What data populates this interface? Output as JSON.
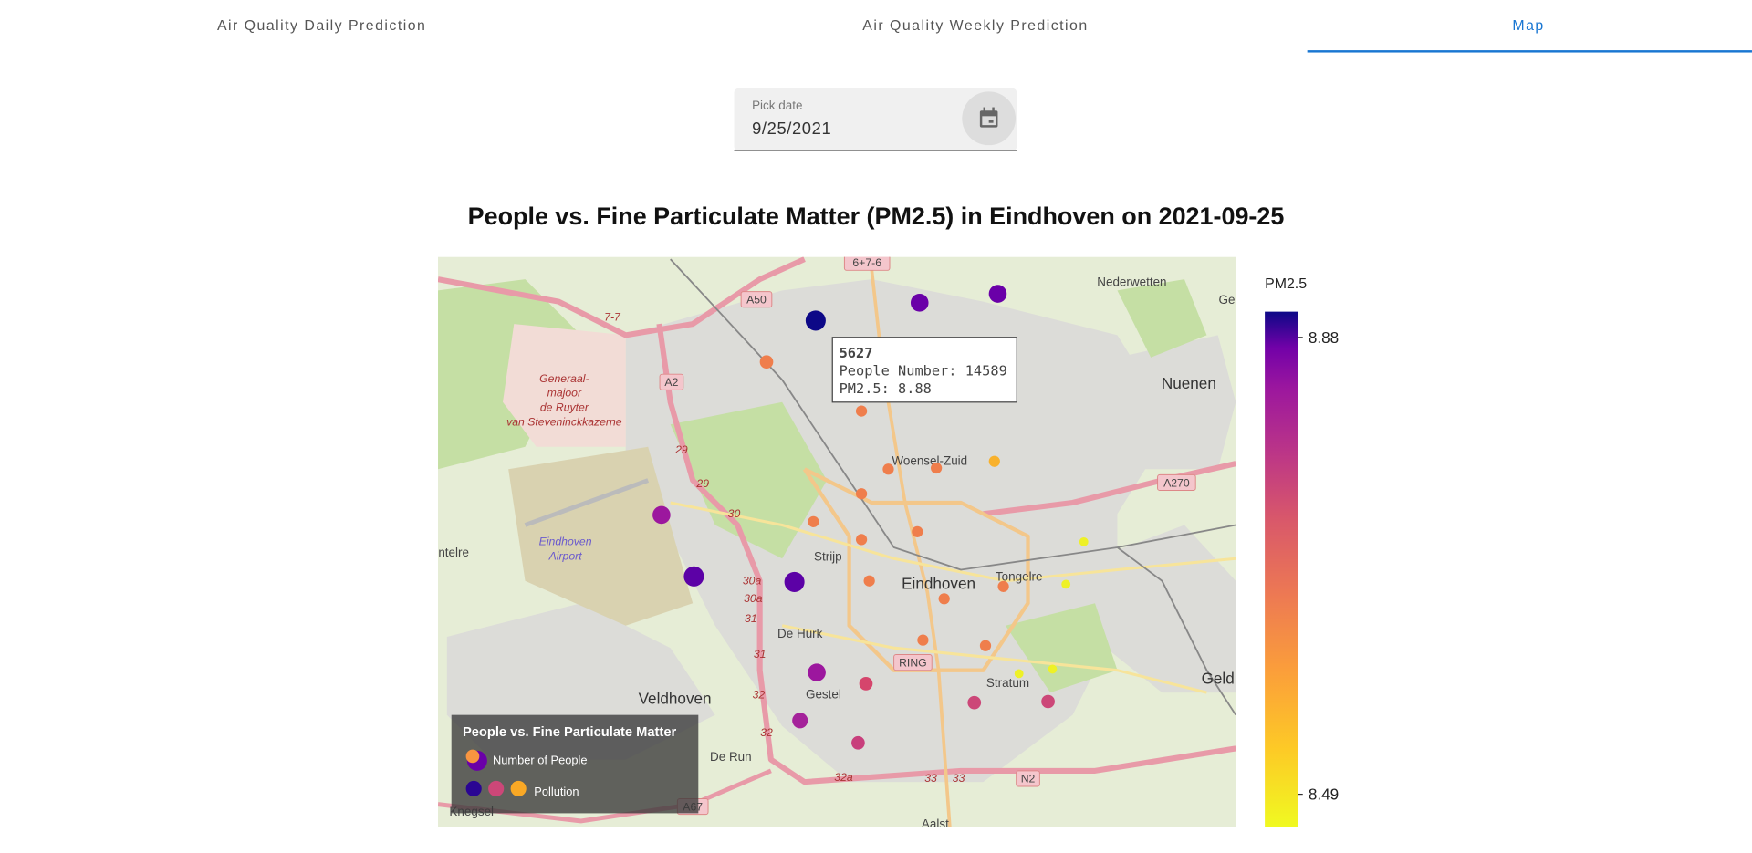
{
  "tabs": [
    "Air Quality Daily Prediction",
    "Air Quality Weekly Prediction",
    "Map"
  ],
  "date_picker": {
    "label": "Pick date",
    "value": "9/25/2021"
  },
  "title": "People vs. Fine Particulate Matter (PM2.5) in Eindhoven on 2021-09-25",
  "map_labels": [
    "Nederwetten",
    "Nuenen",
    "Woensel-Zuid",
    "Strijp",
    "Eindhoven",
    "Tongelre",
    "De Hurk",
    "Veldhoven",
    "Gestel",
    "Stratum",
    "De Run",
    "Aalst",
    "Geld",
    "ntelre",
    "Knegsel",
    "Ge"
  ],
  "poi_labels": [
    "Generaal-",
    "majoor",
    "de Ruyter",
    "van Steveninckkazerne",
    "Eindhoven",
    "Airport"
  ],
  "road_shields": [
    "A50",
    "A2",
    "A270",
    "RING",
    "N2",
    "A67",
    "6+7-6"
  ],
  "road_numbers": [
    "29",
    "29",
    "30",
    "30a",
    "30a",
    "31",
    "31",
    "32",
    "32",
    "32a",
    "33",
    "33",
    "7-7"
  ],
  "tooltip": {
    "id": "5627",
    "people": "People Number: 14589",
    "pm": "PM2.5: 8.88"
  },
  "legend": {
    "title": "People vs. Fine Particulate Matter",
    "items": [
      "Number of People",
      "Pollution"
    ]
  },
  "colorbar": {
    "title": "PM2.5",
    "ticks": [
      8.88,
      8.49
    ]
  }
}
